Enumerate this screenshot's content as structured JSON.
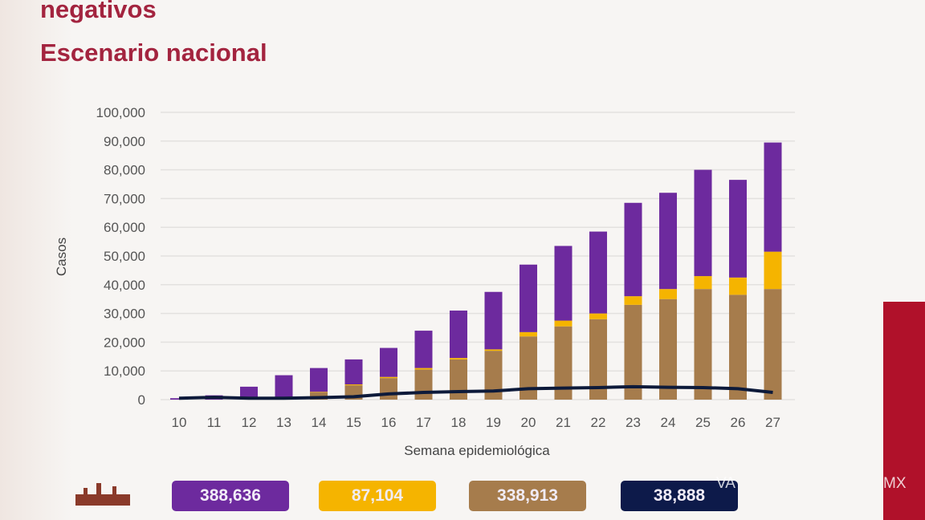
{
  "header": {
    "title_line1": "negativos",
    "title_line2": "Escenario nacional"
  },
  "chart_data": {
    "type": "bar",
    "stacked": true,
    "xlabel": "Semana epidemiológica",
    "ylabel": "Casos",
    "ylim": [
      0,
      100000
    ],
    "yticks": [
      "0",
      "10,000",
      "20,000",
      "30,000",
      "40,000",
      "50,000",
      "60,000",
      "70,000",
      "80,000",
      "90,000",
      "100,000"
    ],
    "grid": true,
    "categories": [
      "10",
      "11",
      "12",
      "13",
      "14",
      "15",
      "16",
      "17",
      "18",
      "19",
      "20",
      "21",
      "22",
      "23",
      "24",
      "25",
      "26",
      "27"
    ],
    "series": [
      {
        "color": "#a67c4c",
        "values": [
          0,
          0,
          0,
          500,
          2500,
          5000,
          7500,
          10500,
          14000,
          17000,
          22000,
          25500,
          28000,
          33000,
          35000,
          38500,
          36500,
          38500
        ]
      },
      {
        "color": "#f5b400",
        "values": [
          0,
          0,
          0,
          0,
          200,
          300,
          400,
          500,
          500,
          500,
          1500,
          2000,
          2000,
          3000,
          3500,
          4500,
          6000,
          13000
        ]
      },
      {
        "color": "#6d2a9e",
        "values": [
          500,
          1500,
          4500,
          8000,
          8300,
          8700,
          10100,
          13000,
          16500,
          20000,
          23500,
          26000,
          28500,
          32500,
          33500,
          37000,
          34000,
          38000
        ]
      }
    ],
    "line": {
      "color": "#0d1a3a",
      "values": [
        500,
        800,
        500,
        500,
        700,
        1000,
        2000,
        2500,
        2800,
        3000,
        3800,
        4000,
        4200,
        4500,
        4300,
        4200,
        3800,
        2500
      ]
    }
  },
  "totals": [
    {
      "value": "388,636",
      "color": "#6d2a9e"
    },
    {
      "value": "87,104",
      "color": "#f5b400"
    },
    {
      "value": "338,913",
      "color": "#a67c4c"
    },
    {
      "value": "38,888",
      "color": "#0d1a4a"
    }
  ],
  "watermark": {
    "left": "VA",
    "right": "MX"
  }
}
